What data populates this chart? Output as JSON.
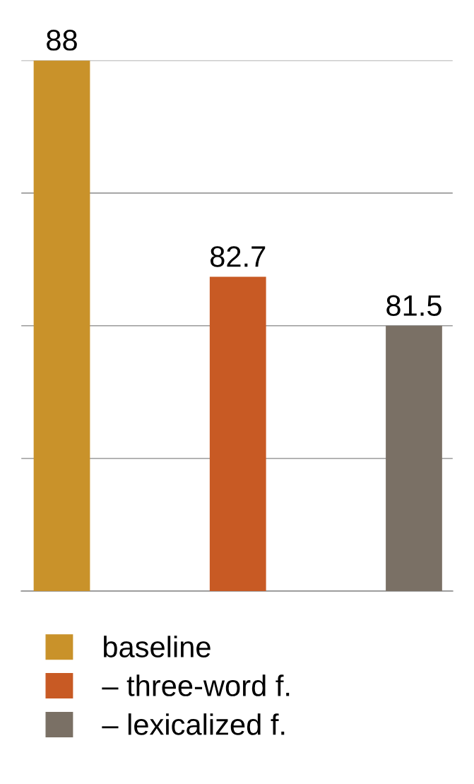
{
  "chart_data": {
    "type": "bar",
    "stacked": true,
    "categories": [
      null,
      null,
      null
    ],
    "series": [
      {
        "name": "baseline",
        "color": "#c9922a",
        "values": [
          88,
          null,
          null
        ]
      },
      {
        "name": "– three-word f.",
        "color": "#c85a24",
        "values": [
          null,
          82.7,
          null
        ]
      },
      {
        "name": "– lexicalized f.",
        "color": "#7a7065",
        "values": [
          null,
          null,
          81.5
        ]
      }
    ],
    "ylim": [
      75,
      88
    ],
    "yticks": [
      {
        "value": 75,
        "label": null
      },
      {
        "value": 78.25,
        "label": null
      },
      {
        "value": 81.5,
        "label": null
      },
      {
        "value": 84.75,
        "label": null
      },
      {
        "value": 88,
        "label": null
      }
    ],
    "grid": "y",
    "legend": "bottom",
    "data_labels": true
  }
}
